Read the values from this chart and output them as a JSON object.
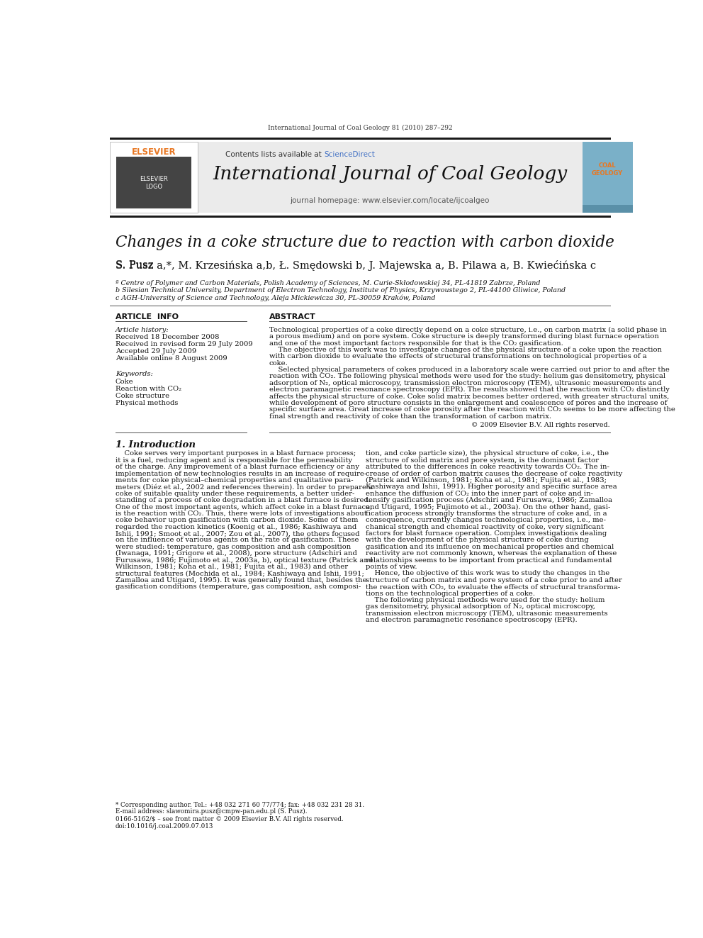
{
  "page_title_small": "International Journal of Coal Geology 81 (2010) 287–292",
  "journal_name": "International Journal of Coal Geology",
  "contents_line": "Contents lists available at ScienceDirect",
  "sciencedirect_color": "#4472C4",
  "journal_homepage": "journal homepage: www.elsevier.com/locate/ijcoalgeo",
  "article_title": "Changes in a coke structure due to reaction with carbon dioxide",
  "authors": "S. Pusz á,*, M. Krzesińska á,b, Ł. Smędowski b, J. Majewska á, B. Pilawa á, B. Kwiećińska c",
  "affil_a": "ª Centre of Polymer and Carbon Materials, Polish Academy of Sciences, M. Curie-Skłodowskiej 34, PL-41819 Zabrze, Poland",
  "affil_b": "b Silesian Technical University, Department of Electron Technology, Institute of Physics, Krzywoustego 2, PL-44100 Gliwice, Poland",
  "affil_c": "c AGH-University of Science and Technology, Aleja Mickiewicza 30, PL-30059 Kraków, Poland",
  "article_info_header": "ARTICLE  INFO",
  "abstract_header": "ABSTRACT",
  "article_history_label": "Article history:",
  "received": "Received 18 December 2008",
  "revised": "Received in revised form 29 July 2009",
  "accepted": "Accepted 29 July 2009",
  "online": "Available online 8 August 2009",
  "keywords_label": "Keywords:",
  "keyword1": "Coke",
  "keyword2": "Reaction with CO₂",
  "keyword3": "Coke structure",
  "keyword4": "Physical methods",
  "copyright": "© 2009 Elsevier B.V. All rights reserved.",
  "intro_header": "1. Introduction",
  "footnote_corresp": "* Corresponding author. Tel.: +48 032 271 60 77/774; fax: +48 032 231 28 31.",
  "footnote_email": "E-mail address: slawomira.pusz@cmpw-pan.edu.pl (S. Pusz).",
  "issn_line": "0166-5162/$ – see front matter © 2009 Elsevier B.V. All rights reserved.",
  "doi_line": "doi:10.1016/j.coal.2009.07.013",
  "bg_color": "#ffffff",
  "dark_bar_color": "#1a1a1a",
  "elsevier_orange": "#E87722",
  "link_color": "#4472C4"
}
